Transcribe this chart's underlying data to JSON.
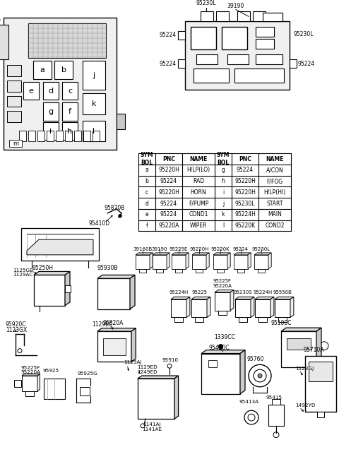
{
  "bg_color": "#ffffff",
  "table_headers": [
    "SYM\nBOL",
    "PNC",
    "NAME",
    "SYM\nBOL",
    "PNC",
    "NAME"
  ],
  "table_rows": [
    [
      "a",
      "95220H",
      "H/LP(LO)",
      "g",
      "95224",
      "A/CON"
    ],
    [
      "b",
      "95224",
      "RAD",
      "h",
      "95220H",
      "F/FOG"
    ],
    [
      "c",
      "95220H",
      "HORN",
      "i",
      "95220H",
      "H/LP(HI)"
    ],
    [
      "d",
      "95224",
      "F/PUMP",
      "j",
      "95230L",
      "START"
    ],
    [
      "e",
      "95224",
      "COND1",
      "k",
      "95224H",
      "MAIN"
    ],
    [
      "f",
      "95220A",
      "WIPER",
      "l",
      "95220K",
      "COND2"
    ]
  ],
  "row1_labels": [
    "39160B",
    "39190",
    "95225E",
    "95220H",
    "95220K",
    "95224",
    "95230L"
  ],
  "row2_labels": [
    "95224H",
    "95225",
    "95225F\n95220A",
    "95230S",
    "95224H",
    "95550B"
  ]
}
